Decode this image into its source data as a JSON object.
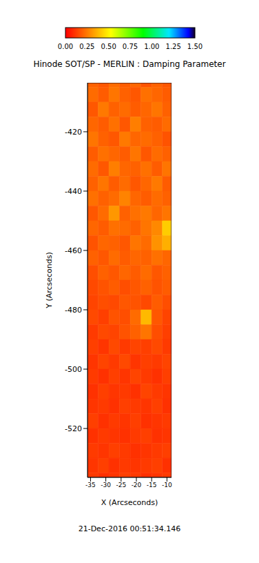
{
  "chart_data": {
    "type": "heatmap",
    "title": "Hinode SOT/SP - MERLIN : Damping Parameter",
    "xlabel": "X (Arcseconds)",
    "ylabel": "Y (Arcseconds)",
    "annotation": "21-Dec-2016 00:51:34.146",
    "xlim": [
      -36,
      -8.5
    ],
    "xticks": [
      -35,
      -30,
      -25,
      -20,
      -15,
      -10
    ],
    "ylim": [
      -536.5,
      -403.5
    ],
    "yticks": [
      -520,
      -500,
      -480,
      -460,
      -440,
      -420
    ],
    "x_edges": [
      -36,
      -32.5,
      -29,
      -25.5,
      -22,
      -18.5,
      -15,
      -11.5,
      -8.5
    ],
    "y_edges": [
      -403.5,
      -405,
      -410,
      -415,
      -420,
      -425,
      -430,
      -435,
      -440,
      -445,
      -450,
      -455,
      -460,
      -465,
      -470,
      -475,
      -480,
      -485,
      -490,
      -495,
      -500,
      -505,
      -510,
      -515,
      -520,
      -525,
      -530,
      -535,
      -536.5
    ],
    "cells": [
      [
        0.2,
        0.18,
        0.22,
        0.19,
        0.21,
        0.17,
        0.2,
        0.18
      ],
      [
        0.22,
        0.19,
        0.24,
        0.2,
        0.18,
        0.23,
        0.21,
        0.19
      ],
      [
        0.18,
        0.25,
        0.2,
        0.22,
        0.19,
        0.21,
        0.24,
        0.2
      ],
      [
        0.21,
        0.19,
        0.23,
        0.18,
        0.26,
        0.2,
        0.19,
        0.22
      ],
      [
        0.24,
        0.2,
        0.18,
        0.25,
        0.21,
        0.22,
        0.2,
        0.17
      ],
      [
        0.19,
        0.23,
        0.21,
        0.19,
        0.24,
        0.18,
        0.22,
        0.2
      ],
      [
        0.22,
        0.18,
        0.26,
        0.21,
        0.2,
        0.23,
        0.19,
        0.24
      ],
      [
        0.2,
        0.24,
        0.19,
        0.22,
        0.18,
        0.21,
        0.25,
        0.19
      ],
      [
        0.23,
        0.2,
        0.22,
        0.27,
        0.21,
        0.19,
        0.22,
        0.2
      ],
      [
        0.18,
        0.22,
        0.31,
        0.2,
        0.23,
        0.25,
        0.21,
        0.24
      ],
      [
        0.21,
        0.19,
        0.23,
        0.22,
        0.2,
        0.24,
        0.28,
        0.42
      ],
      [
        0.17,
        0.21,
        0.2,
        0.18,
        0.24,
        0.22,
        0.3,
        0.36
      ],
      [
        0.2,
        0.18,
        0.22,
        0.19,
        0.21,
        0.2,
        0.23,
        0.21
      ],
      [
        0.16,
        0.2,
        0.18,
        0.21,
        0.19,
        0.22,
        0.18,
        0.2
      ],
      [
        0.15,
        0.17,
        0.19,
        0.16,
        0.18,
        0.2,
        0.17,
        0.19
      ],
      [
        0.14,
        0.16,
        0.15,
        0.18,
        0.17,
        0.15,
        0.19,
        0.16
      ],
      [
        0.15,
        0.13,
        0.17,
        0.16,
        0.22,
        0.38,
        0.18,
        0.14
      ],
      [
        0.12,
        0.15,
        0.14,
        0.17,
        0.2,
        0.24,
        0.16,
        0.13
      ],
      [
        0.13,
        0.11,
        0.15,
        0.12,
        0.14,
        0.13,
        0.15,
        0.12
      ],
      [
        0.11,
        0.14,
        0.12,
        0.15,
        0.11,
        0.13,
        0.12,
        0.14
      ],
      [
        0.12,
        0.1,
        0.13,
        0.11,
        0.14,
        0.12,
        0.1,
        0.13
      ],
      [
        0.1,
        0.13,
        0.11,
        0.12,
        0.1,
        0.14,
        0.12,
        0.11
      ],
      [
        0.11,
        0.12,
        0.1,
        0.13,
        0.12,
        0.11,
        0.13,
        0.1
      ],
      [
        0.13,
        0.1,
        0.12,
        0.11,
        0.13,
        0.1,
        0.11,
        0.12
      ],
      [
        0.1,
        0.12,
        0.11,
        0.1,
        0.12,
        0.13,
        0.1,
        0.11
      ],
      [
        0.12,
        0.11,
        0.13,
        0.12,
        0.1,
        0.11,
        0.12,
        0.13
      ],
      [
        0.11,
        0.13,
        0.1,
        0.12,
        0.11,
        0.12,
        0.13,
        0.1
      ],
      [
        0.12,
        0.1,
        0.11,
        0.13,
        0.12,
        0.1,
        0.11,
        0.12
      ]
    ],
    "colorbar_range": [
      0,
      1.5
    ],
    "colorbar_ticks": [
      {
        "value": 0,
        "label": "0.00"
      },
      {
        "value": 0.25,
        "label": "0.25"
      },
      {
        "value": 0.5,
        "label": "0.50"
      },
      {
        "value": 0.75,
        "label": "0.75"
      },
      {
        "value": 1,
        "label": "1.00"
      },
      {
        "value": 1.25,
        "label": "1.25"
      },
      {
        "value": 1.5,
        "label": "1.50"
      }
    ]
  }
}
